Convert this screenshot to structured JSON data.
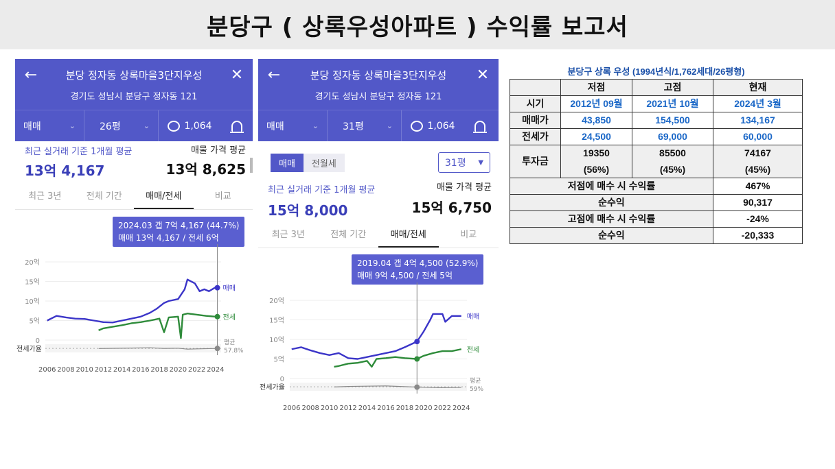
{
  "title": "분당구 ( 상록우성아파트 ) 수익률 보고서",
  "panels": [
    {
      "nav_title": "분당 정자동 상록마을3단지우성",
      "address": "경기도 성남시 분당구 정자동 121",
      "filter_type": "매매",
      "filter_size": "26평",
      "comment_count": "1,064",
      "recent_label": "최근 실거래 기준 1개월 평균",
      "recent_value": "13억 4,167",
      "listing_label": "매물 가격 평균",
      "listing_value": "13억 8,625",
      "tabs": [
        "최근 3년",
        "전체 기간",
        "매매/전세",
        "비교"
      ],
      "active_tab": "매매/전세",
      "tooltip_line1": "2024.03  갭 7억 4,167 (44.7%)",
      "tooltip_line2": "매매 13억 4,167 / 전세 6억",
      "y_ticks": [
        "20억",
        "15억",
        "10억",
        "5억",
        "0"
      ],
      "ratio_label": "전세가율",
      "avg_label": "평균",
      "avg_value": "57.8%",
      "x_ticks": [
        "2006",
        "2008",
        "2010",
        "2012",
        "2014",
        "2016",
        "2018",
        "2020",
        "2022",
        "2024"
      ],
      "series_sale_label": "매매",
      "series_jeonse_label": "전세"
    },
    {
      "nav_title": "분당 정자동 상록마을3단지우성",
      "address": "경기도 성남시 분당구 정자동 121",
      "filter_type": "매매",
      "filter_size": "31평",
      "comment_count": "1,064",
      "toggle_on": "매매",
      "toggle_off": "전월세",
      "size_select": "31평",
      "recent_label": "최근 실거래 기준 1개월 평균",
      "recent_value": "15억 8,000",
      "listing_label": "매물 가격 평균",
      "listing_value": "15억 6,750",
      "tabs": [
        "최근 3년",
        "전체 기간",
        "매매/전세",
        "비교"
      ],
      "active_tab": "매매/전세",
      "tooltip_line1": "2019.04  갭 4억 4,500 (52.9%)",
      "tooltip_line2": "매매 9억 4,500 / 전세 5억",
      "y_ticks": [
        "20억",
        "15억",
        "10억",
        "5억",
        "0"
      ],
      "ratio_label": "전세가율",
      "avg_label": "평균",
      "avg_value": "59%",
      "x_ticks": [
        "2006",
        "2008",
        "2010",
        "2012",
        "2014",
        "2016",
        "2018",
        "2020",
        "2022",
        "2024"
      ],
      "series_sale_label": "매매",
      "series_jeonse_label": "전세"
    }
  ],
  "chart_data": [
    {
      "type": "line",
      "ylim": [
        0,
        20
      ],
      "ylabel": "억",
      "marker_x": 2024.2,
      "series": [
        {
          "name": "매매",
          "color": "#3b35c8",
          "x": [
            2006,
            2007,
            2008,
            2009,
            2010,
            2011,
            2012,
            2013,
            2014,
            2015,
            2016,
            2017,
            2017.7,
            2018.5,
            2019,
            2020,
            2020.7,
            2021,
            2021.8,
            2022.3,
            2022.8,
            2023.3,
            2024,
            2024.2
          ],
          "y": [
            5.0,
            6.2,
            5.8,
            5.5,
            5.4,
            5.0,
            4.6,
            4.5,
            5.0,
            5.5,
            6.0,
            7.0,
            8.0,
            9.5,
            10.0,
            10.5,
            13.0,
            15.5,
            14.5,
            12.5,
            13.0,
            12.5,
            13.5,
            13.4
          ]
        },
        {
          "name": "전세",
          "color": "#2e8b3a",
          "x": [
            2011.5,
            2012,
            2013,
            2014,
            2015,
            2016,
            2017,
            2018,
            2018.5,
            2019,
            2020,
            2020.3,
            2020.5,
            2021,
            2022,
            2023,
            2024,
            2024.2
          ],
          "y": [
            2.5,
            3.0,
            3.4,
            3.8,
            4.3,
            4.6,
            5.0,
            5.5,
            2.0,
            5.8,
            6.0,
            0.5,
            6.5,
            6.8,
            6.5,
            6.2,
            6.0,
            6.0
          ]
        }
      ],
      "ratio_series": {
        "x": [
          2011.5,
          2013,
          2015,
          2017,
          2018.5,
          2020,
          2021,
          2022,
          2024.2
        ],
        "y": [
          56,
          60,
          65,
          70,
          58,
          62,
          45,
          50,
          57.8
        ]
      },
      "ratio_avg": 57.8
    },
    {
      "type": "line",
      "ylim": [
        0,
        20
      ],
      "ylabel": "억",
      "marker_x": 2019.3,
      "series": [
        {
          "name": "매매",
          "color": "#3b35c8",
          "x": [
            2006,
            2007,
            2008,
            2009,
            2010,
            2011,
            2012,
            2013,
            2014,
            2015,
            2016,
            2017,
            2018,
            2019.3,
            2020,
            2020.7,
            2021,
            2022,
            2022.3,
            2023,
            2024
          ],
          "y": [
            7.5,
            8.0,
            7.2,
            6.5,
            6.0,
            6.5,
            5.2,
            5.0,
            5.5,
            6.0,
            6.5,
            7.0,
            8.0,
            9.45,
            12.0,
            15.0,
            16.5,
            16.5,
            14.5,
            16.0,
            16.0
          ]
        },
        {
          "name": "전세",
          "color": "#2e8b3a",
          "x": [
            2010.5,
            2011,
            2012,
            2013,
            2014,
            2014.5,
            2015,
            2016,
            2017,
            2018,
            2019.3,
            2020,
            2021,
            2022,
            2023,
            2024
          ],
          "y": [
            3.0,
            3.2,
            3.8,
            4.0,
            4.5,
            3.0,
            5.0,
            5.2,
            5.5,
            5.2,
            5.0,
            5.8,
            6.5,
            7.0,
            7.0,
            7.5
          ]
        }
      ],
      "ratio_series": {
        "x": [
          2010.5,
          2012,
          2014,
          2016,
          2017,
          2019.3,
          2021,
          2022,
          2024
        ],
        "y": [
          55,
          65,
          70,
          75,
          68,
          52.9,
          45,
          42,
          47
        ]
      },
      "ratio_avg": 59
    }
  ],
  "report_table": {
    "caption": "분당구 상록 우성 (1994년식/1,762세대/26평형)",
    "col_headers": [
      "",
      "저점",
      "고점",
      "현재"
    ],
    "rows": [
      {
        "label": "시기",
        "values": [
          "2012년 09월",
          "2021년 10월",
          "2024년 3월"
        ]
      },
      {
        "label": "매매가",
        "values": [
          "43,850",
          "154,500",
          "134,167"
        ]
      },
      {
        "label": "전세가",
        "values": [
          "24,500",
          "69,000",
          "60,000"
        ]
      },
      {
        "label": "투자금",
        "values": [
          "19350",
          "85500",
          "74167"
        ],
        "sub": [
          "(56%)",
          "(45%)",
          "(45%)"
        ]
      }
    ],
    "summary": [
      {
        "label": "저점에 매수 시 수익률",
        "value": "467%"
      },
      {
        "label": "순수익",
        "value": "90,317"
      },
      {
        "label": "고점에 매수 시 수익률",
        "value": "-24%"
      },
      {
        "label": "순수익",
        "value": "-20,333"
      }
    ]
  }
}
